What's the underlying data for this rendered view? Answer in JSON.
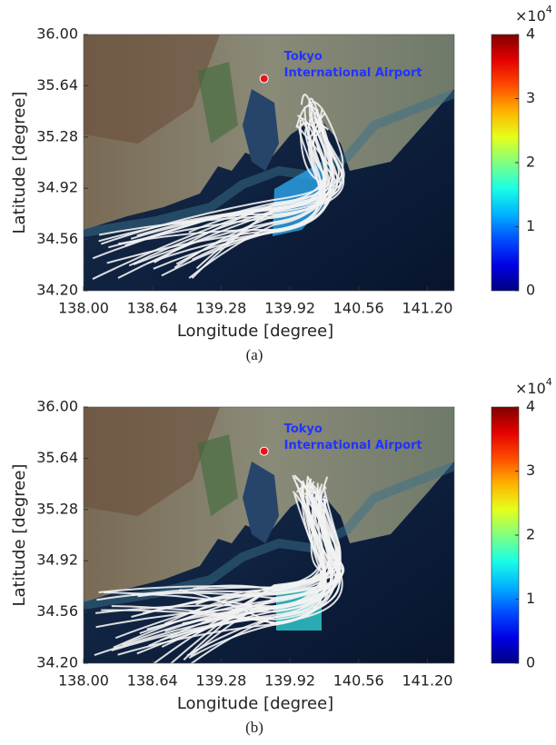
{
  "chart_data": [
    {
      "type": "map",
      "xlabel": "Longitude [degree]",
      "ylabel": "Latitude [degree]",
      "xlim": [
        138,
        141.45
      ],
      "xticks": [
        {
          "value": 138,
          "label": "138.00"
        },
        138.64,
        139.28,
        139.92,
        140.56,
        {
          "value": 141.2,
          "label": "141.20"
        }
      ],
      "ylim": [
        34.2,
        36
      ],
      "yticks": [
        {
          "value": 34.2,
          "label": "34.20"
        },
        34.56,
        34.92,
        35.28,
        35.64,
        {
          "value": 36,
          "label": "36.00"
        }
      ],
      "airport": {
        "label_lines": [
          "Tokyo",
          "International Airport"
        ],
        "lon": 139.68,
        "lat": 35.69,
        "color": "#e8141b",
        "label_color": "#2233ff"
      },
      "colorbar": {
        "clim": [
          0,
          4
        ],
        "ticks": [
          0,
          1,
          2,
          3,
          4
        ],
        "multiplier": "×10",
        "exponent": 4,
        "colormap": "jet"
      },
      "caption": "(a)"
    },
    {
      "type": "map",
      "xlabel": "Longitude [degree]",
      "ylabel": "Latitude [degree]",
      "xlim": [
        138,
        141.45
      ],
      "xticks": [
        {
          "value": 138,
          "label": "138.00"
        },
        138.64,
        139.28,
        139.92,
        140.56,
        {
          "value": 141.2,
          "label": "141.20"
        }
      ],
      "ylim": [
        34.2,
        36
      ],
      "yticks": [
        {
          "value": 34.2,
          "label": "34.20"
        },
        34.56,
        34.92,
        35.28,
        35.64,
        {
          "value": 36,
          "label": "36.00"
        }
      ],
      "airport": {
        "label_lines": [
          "Tokyo",
          "International Airport"
        ],
        "lon": 139.68,
        "lat": 35.69,
        "color": "#e8141b",
        "label_color": "#2233ff"
      },
      "colorbar": {
        "clim": [
          0,
          4
        ],
        "ticks": [
          0,
          1,
          2,
          3,
          4
        ],
        "multiplier": "×10",
        "exponent": 4,
        "colormap": "jet"
      },
      "caption": "(b)"
    }
  ]
}
